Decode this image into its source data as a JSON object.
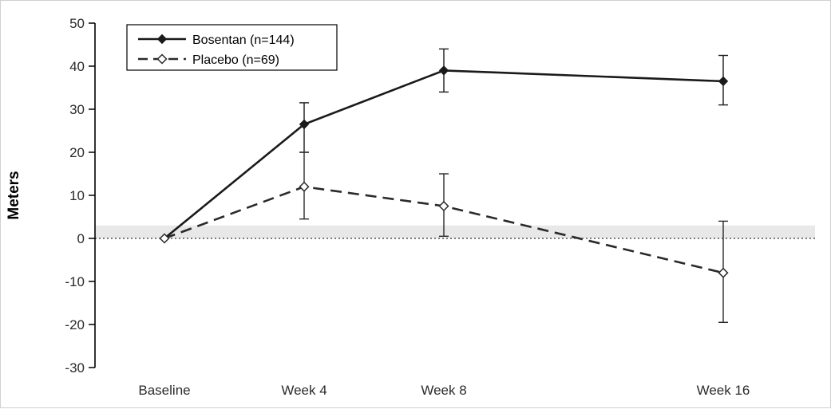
{
  "chart_data": {
    "type": "line",
    "title": "",
    "ylabel": "Meters",
    "xlabel": "",
    "x_categories": [
      "Baseline",
      "Week 4",
      "Week 8",
      "Week 16"
    ],
    "x_weeks": [
      0,
      4,
      8,
      16
    ],
    "ylim": [
      -30,
      50
    ],
    "ytick_labels": [
      "50",
      "40",
      "30",
      "20",
      "10",
      "0",
      "-10",
      "-20",
      "-30"
    ],
    "zero_reference_line": 0,
    "highlight_band": {
      "from": 0,
      "to": 3
    },
    "grid": "off",
    "legend_position": "top-left-inside",
    "series": [
      {
        "name": "Bosentan (n=144)",
        "values": [
          0,
          26.5,
          39,
          36.5
        ],
        "err_low": [
          0,
          20,
          34,
          31
        ],
        "err_high": [
          0,
          31.5,
          44,
          42.5
        ],
        "line_style": "solid",
        "marker": "filled-diamond",
        "color": "#1a1a1a"
      },
      {
        "name": "Placebo (n=69)",
        "values": [
          0,
          12,
          7.5,
          -8
        ],
        "err_low": [
          0,
          4.5,
          0.5,
          -19.5
        ],
        "err_high": [
          0,
          20,
          15,
          4
        ],
        "line_style": "dashed",
        "marker": "open-diamond",
        "color": "#2a2a2a"
      }
    ]
  },
  "colors": {
    "band": "#e8e8e8",
    "axis": "#000000",
    "text": "#2b2b2b"
  }
}
